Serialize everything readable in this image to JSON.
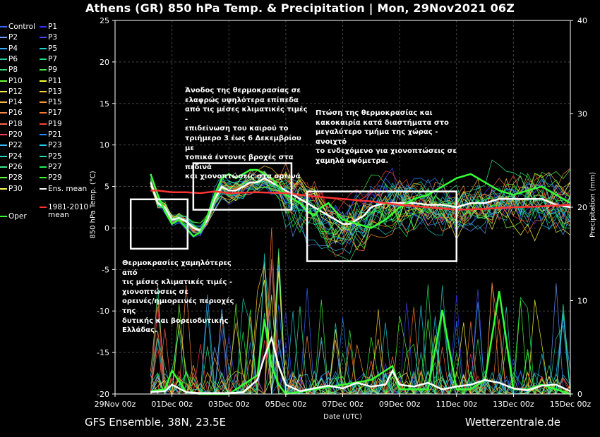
{
  "title": "Athens  (GR)  850 hPa Temp. & Precipitation | Mon, 29Nov2021 06Z",
  "footer_left": "GFS Ensemble, 38N, 23.5E",
  "footer_right": "Wetterzentrale.de",
  "colors": {
    "background": "#000000",
    "ens_mean": "#ffffff",
    "oper": "#33ff33",
    "climate_mean": "#ff3333",
    "annotation_box": "#ffffff"
  },
  "legend": [
    {
      "label": "Control",
      "color": "#3366ff"
    },
    {
      "label": "P1",
      "color": "#3333ff"
    },
    {
      "label": "P2",
      "color": "#6699ff"
    },
    {
      "label": "P3",
      "color": "#4444ee"
    },
    {
      "label": "P4",
      "color": "#33aaff"
    },
    {
      "label": "P5",
      "color": "#22cccc"
    },
    {
      "label": "P6",
      "color": "#22ccaa"
    },
    {
      "label": "P7",
      "color": "#22dd88"
    },
    {
      "label": "P8",
      "color": "#33dd66"
    },
    {
      "label": "P9",
      "color": "#44ee44"
    },
    {
      "label": "P10",
      "color": "#66ff33"
    },
    {
      "label": "P11",
      "color": "#ffff33"
    },
    {
      "label": "P12",
      "color": "#ffee44"
    },
    {
      "label": "P13",
      "color": "#ffcc33"
    },
    {
      "label": "P14",
      "color": "#ffbb44"
    },
    {
      "label": "P15",
      "color": "#ff9933"
    },
    {
      "label": "P16",
      "color": "#ff8844"
    },
    {
      "label": "P17",
      "color": "#ff7733"
    },
    {
      "label": "P18",
      "color": "#ff6644"
    },
    {
      "label": "P19",
      "color": "#ff4433"
    },
    {
      "label": "P20",
      "color": "#ff3355"
    },
    {
      "label": "P21",
      "color": "#2288ff"
    },
    {
      "label": "P22",
      "color": "#33bbff"
    },
    {
      "label": "P23",
      "color": "#22ccee"
    },
    {
      "label": "P24",
      "color": "#22ddcc"
    },
    {
      "label": "P25",
      "color": "#22ddaa"
    },
    {
      "label": "P26",
      "color": "#33ee88"
    },
    {
      "label": "P27",
      "color": "#22ee55"
    },
    {
      "label": "P28",
      "color": "#55ff33"
    },
    {
      "label": "P29",
      "color": "#33ff22"
    },
    {
      "label": "P30",
      "color": "#ffff55"
    },
    {
      "label": "Ens. mean",
      "color": "#ffffff"
    },
    {
      "label": "1981-2010\nmean",
      "color": "#ff3333"
    },
    {
      "label": "Oper",
      "color": "#33ff33"
    }
  ],
  "annotations": [
    {
      "text": "Άνοδος της θερμοκρασίας σε\nελαφρώς υψηλότερα επίπεδα\nαπό τις μέσες κλιματικές τιμές -\nεπιδείνωση του καιρού το\nτριήμερο 3 έως 6 Δεκεμβρίου με\nτοπικά έντονες βροχές στα πεδινά\nκαι χιονοπτώσεις στα ορεινά"
    },
    {
      "text": "Πτώση της θερμοκρασίας και\nκακοκαιρία κατά διαστήματα στο\nμεγαλύτερο τμήμα της χώρας - ανοιχτό\nτο ενδεχόμενο για χιονοπτώσεις σε\nχαμηλά υψόμετρα."
    },
    {
      "text": "Θερμοκρασίες χαμηλότερες από\nτις μέσες κλιματικές τιμές -\nχιονοπτώσεις σε\nορεινές/ημιορεινές περιοχές της\nδυτικής και βορειοδυτικής\nΕλλάδας."
    }
  ],
  "chart_data": {
    "type": "line",
    "xlabel": "Date (UTC)",
    "ylabel": "850 hPa Temp. (°C)",
    "y2label": "Precipitation (mm)",
    "ylim": [
      -20,
      25
    ],
    "y2lim": [
      0,
      40
    ],
    "yticks": [
      -20,
      -15,
      -10,
      -5,
      0,
      5,
      10,
      15,
      20,
      25
    ],
    "y2ticks": [
      0,
      10,
      20,
      30,
      40
    ],
    "xlim_days": [
      0,
      16
    ],
    "xticks": [
      {
        "day": 0,
        "label": "29Nov 00z"
      },
      {
        "day": 2,
        "label": "01Dec 00z"
      },
      {
        "day": 4,
        "label": "03Dec 00z"
      },
      {
        "day": 6,
        "label": "05Dec 00z"
      },
      {
        "day": 8,
        "label": "07Dec 00z"
      },
      {
        "day": 10,
        "label": "09Dec 00z"
      },
      {
        "day": 12,
        "label": "11Dec 00z"
      },
      {
        "day": 14,
        "label": "13Dec 00z"
      },
      {
        "day": 16,
        "label": "15Dec 00z"
      }
    ],
    "grid": true,
    "series_temp": [
      {
        "name": "Ens. mean",
        "x": [
          1.25,
          1.5,
          1.75,
          2,
          2.25,
          2.5,
          2.75,
          3,
          3.25,
          3.5,
          3.75,
          4,
          4.25,
          4.5,
          4.75,
          5,
          5.25,
          5.5,
          5.75,
          6,
          6.25,
          6.5,
          6.75,
          7,
          7.25,
          7.5,
          7.75,
          8,
          8.25,
          8.5,
          8.75,
          9,
          9.25,
          9.5,
          9.75,
          10,
          10.5,
          11,
          11.5,
          12,
          12.5,
          13,
          13.5,
          14,
          14.5,
          15,
          15.5,
          16
        ],
        "y": [
          5.5,
          3.0,
          2.5,
          1.0,
          1.2,
          0.8,
          0.0,
          -0.3,
          1.0,
          3.5,
          5.0,
          4.5,
          4.5,
          5.0,
          5.5,
          5.5,
          6.0,
          5.5,
          5.0,
          4.5,
          4.0,
          3.5,
          3.0,
          2.5,
          2.0,
          1.5,
          1.0,
          0.5,
          0.5,
          1.0,
          1.5,
          2.5,
          2.8,
          3.0,
          3.0,
          3.0,
          3.0,
          2.8,
          2.8,
          2.5,
          3.0,
          3.0,
          3.5,
          3.5,
          3.5,
          3.5,
          2.8,
          2.5
        ]
      },
      {
        "name": "Oper",
        "x": [
          1.25,
          1.5,
          1.75,
          2,
          2.25,
          2.5,
          2.75,
          3,
          3.25,
          3.5,
          3.75,
          4,
          4.25,
          4.5,
          4.75,
          5,
          5.25,
          5.5,
          5.75,
          6,
          6.25,
          6.5,
          6.75,
          7,
          7.25,
          7.5,
          7.75,
          8,
          8.5,
          9,
          9.5,
          10,
          10.5,
          11,
          11.5,
          12,
          12.5,
          13,
          13.5,
          14,
          14.5,
          15,
          15.5,
          16
        ],
        "y": [
          6.5,
          4.0,
          2.0,
          0.5,
          1.0,
          0.0,
          -1.0,
          -0.5,
          1.5,
          4.0,
          6.0,
          6.5,
          6.0,
          6.5,
          7.0,
          7.0,
          6.5,
          6.0,
          5.0,
          4.0,
          3.5,
          3.0,
          2.0,
          1.5,
          2.5,
          3.0,
          2.0,
          1.0,
          0.5,
          0.0,
          1.0,
          2.5,
          3.5,
          4.0,
          5.0,
          6.0,
          6.5,
          5.5,
          4.5,
          4.0,
          4.5,
          5.0,
          4.0,
          3.0
        ]
      },
      {
        "name": "1981-2010\nmean",
        "x": [
          1.25,
          1.5,
          2,
          2.5,
          3,
          3.5,
          4,
          5,
          6,
          7,
          8,
          9,
          10,
          11,
          12,
          13,
          14,
          15,
          16
        ],
        "y": [
          4.5,
          4.5,
          4.3,
          4.3,
          4.2,
          4.4,
          4.2,
          4.3,
          4.2,
          3.8,
          3.5,
          3.2,
          2.8,
          2.5,
          2.2,
          2.3,
          2.5,
          2.6,
          2.8
        ]
      }
    ],
    "series_precip_mean": {
      "name": "Ens. mean",
      "x": [
        1.25,
        1.75,
        2,
        2.5,
        3,
        4,
        4.5,
        5,
        5.25,
        5.5,
        5.75,
        6,
        6.5,
        7,
        7.5,
        8,
        8.5,
        9,
        9.5,
        9.75,
        10,
        10.5,
        11,
        11.5,
        12,
        12.5,
        13,
        13.5,
        14,
        14.5,
        15,
        15.5,
        16
      ],
      "y": [
        0.2,
        0.3,
        1.0,
        0.2,
        0.1,
        0.1,
        0.2,
        1.5,
        4.0,
        6.0,
        3.0,
        1.0,
        0.3,
        0.6,
        0.9,
        0.6,
        1.2,
        0.8,
        1.0,
        2.5,
        1.0,
        0.8,
        1.2,
        0.5,
        0.8,
        1.0,
        1.5,
        1.2,
        0.6,
        0.4,
        0.9,
        1.0,
        0.3
      ]
    },
    "series_precip_oper": {
      "name": "Oper",
      "x": [
        1.25,
        1.75,
        2,
        2.5,
        3,
        4,
        5,
        5.25,
        5.5,
        5.75,
        6,
        7,
        8,
        9,
        9.75,
        10,
        11,
        11.5,
        12,
        12.5,
        13,
        13.5,
        14,
        14.5,
        15,
        16
      ],
      "y": [
        0.3,
        0.5,
        2.5,
        0.2,
        0.0,
        0.0,
        2.0,
        8.0,
        3.0,
        1.0,
        0.0,
        0.5,
        1.0,
        1.5,
        3.0,
        0.5,
        0.5,
        9.0,
        0.5,
        0.5,
        1.5,
        11.0,
        0.5,
        0.5,
        1.0,
        0.0
      ]
    }
  }
}
